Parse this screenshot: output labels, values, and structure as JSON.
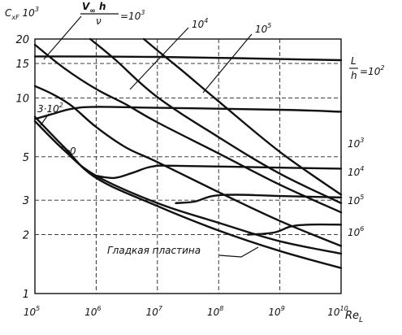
{
  "chart_data": {
    "type": "line",
    "title": "",
    "ylabel": "C_xF 10^3",
    "xlabel": "Re_L",
    "x_scale": "log",
    "y_scale": "log",
    "xlim": [
      100000,
      10000000000
    ],
    "ylim": [
      1,
      20
    ],
    "grid": true,
    "x_ticks": [
      {
        "value": 100000,
        "base": "10",
        "exp": "5"
      },
      {
        "value": 1000000,
        "base": "10",
        "exp": "6"
      },
      {
        "value": 10000000,
        "base": "10",
        "exp": "7"
      },
      {
        "value": 100000000,
        "base": "10",
        "exp": "8"
      },
      {
        "value": 1000000000,
        "base": "10",
        "exp": "9"
      },
      {
        "value": 10000000000,
        "base": "10",
        "exp": "10"
      }
    ],
    "y_ticks": [
      {
        "value": 20,
        "label": "20"
      },
      {
        "value": 15,
        "label": "15"
      },
      {
        "value": 10,
        "label": "10"
      },
      {
        "value": 5,
        "label": "5"
      },
      {
        "value": 3,
        "label": "3"
      },
      {
        "value": 2,
        "label": "2"
      },
      {
        "value": 1,
        "label": "1"
      }
    ],
    "family_labels": {
      "header": "V∞ h/ν = 10^3",
      "v_num": "V",
      "v_sub": "∞",
      "h": " h",
      "nu": "ν",
      "eq": "=10",
      "eq_exp": "3",
      "ten": "10",
      "exp4": "4",
      "exp5": "5",
      "three": "3·10",
      "three_exp": "2",
      "zero": "0"
    },
    "lh_labels": {
      "header": "L/h = 10^2",
      "L": "L",
      "h": "h",
      "eq": "=10",
      "eq_exp": "2",
      "ten": "10",
      "exp3": "3",
      "exp4": "4",
      "exp5": "5",
      "exp6": "6"
    },
    "annotation": "Гладкая пластина",
    "series": [
      {
        "id": "Vh_1e3",
        "points": [
          [
            100000,
            18.7
          ],
          [
            300000,
            14.2
          ],
          [
            1000000,
            11.1
          ],
          [
            3000000,
            9.3
          ],
          [
            10000000,
            7.5
          ],
          [
            100000000,
            5.2
          ],
          [
            1000000000,
            3.6
          ],
          [
            10000000000,
            2.6
          ]
        ]
      },
      {
        "id": "Vh_1e4",
        "points": [
          [
            800000,
            20
          ],
          [
            2000000,
            15.8
          ],
          [
            10000000,
            10.1
          ],
          [
            100000000,
            6.3
          ],
          [
            1000000000,
            4.1
          ],
          [
            10000000000,
            2.9
          ]
        ]
      },
      {
        "id": "Vh_1e5",
        "points": [
          [
            6000000,
            20
          ],
          [
            10000000,
            17.5
          ],
          [
            30000000,
            13.2
          ],
          [
            100000000,
            9.6
          ],
          [
            1000000000,
            5.3
          ],
          [
            10000000000,
            3.2
          ]
        ]
      },
      {
        "id": "Vh_3e2",
        "points": [
          [
            100000,
            11.5
          ],
          [
            200000,
            10.4
          ],
          [
            400000,
            9.1
          ],
          [
            1000000,
            7.1
          ],
          [
            3000000,
            5.6
          ],
          [
            10000000,
            4.7
          ],
          [
            100000000,
            3.3
          ],
          [
            1000000000,
            2.35
          ],
          [
            10000000000,
            1.75
          ]
        ]
      },
      {
        "id": "Vh_0",
        "points": [
          [
            100000,
            7.6
          ],
          [
            300000,
            5.4
          ],
          [
            1000000,
            4.0
          ],
          [
            10000000,
            2.9
          ],
          [
            100000000,
            2.3
          ],
          [
            1000000000,
            1.85
          ],
          [
            10000000000,
            1.6
          ]
        ]
      },
      {
        "id": "smooth_plate",
        "points": [
          [
            100000,
            8.0
          ],
          [
            300000,
            5.6
          ],
          [
            1000000,
            3.9
          ],
          [
            10000000,
            2.8
          ],
          [
            100000000,
            2.1
          ],
          [
            1000000000,
            1.65
          ],
          [
            10000000000,
            1.35
          ]
        ]
      },
      {
        "id": "Lh_1e2",
        "points": [
          [
            100000,
            16.3
          ],
          [
            10000000,
            16.2
          ],
          [
            10000000000,
            15.6
          ]
        ]
      },
      {
        "id": "Lh_1e3",
        "points": [
          [
            100000,
            7.8
          ],
          [
            200000,
            8.3
          ],
          [
            400000,
            8.8
          ],
          [
            1000000,
            9.0
          ],
          [
            10000000,
            8.9
          ],
          [
            1000000000,
            8.7
          ],
          [
            10000000000,
            8.5
          ]
        ]
      },
      {
        "id": "Lh_1e4",
        "points": [
          [
            1000000,
            4.0
          ],
          [
            2000000,
            3.9
          ],
          [
            4000000,
            4.15
          ],
          [
            8000000,
            4.45
          ],
          [
            20000000,
            4.5
          ],
          [
            1000000000,
            4.4
          ],
          [
            10000000000,
            4.35
          ]
        ]
      },
      {
        "id": "Lh_1e5",
        "points": [
          [
            20000000,
            2.9
          ],
          [
            40000000,
            2.95
          ],
          [
            80000000,
            3.15
          ],
          [
            200000000,
            3.2
          ],
          [
            1000000000,
            3.15
          ],
          [
            10000000000,
            3.1
          ]
        ]
      },
      {
        "id": "Lh_1e6",
        "points": [
          [
            300000000,
            2.0
          ],
          [
            800000000,
            2.05
          ],
          [
            1500000000,
            2.2
          ],
          [
            3000000000,
            2.25
          ],
          [
            10000000000,
            2.25
          ]
        ]
      }
    ]
  }
}
